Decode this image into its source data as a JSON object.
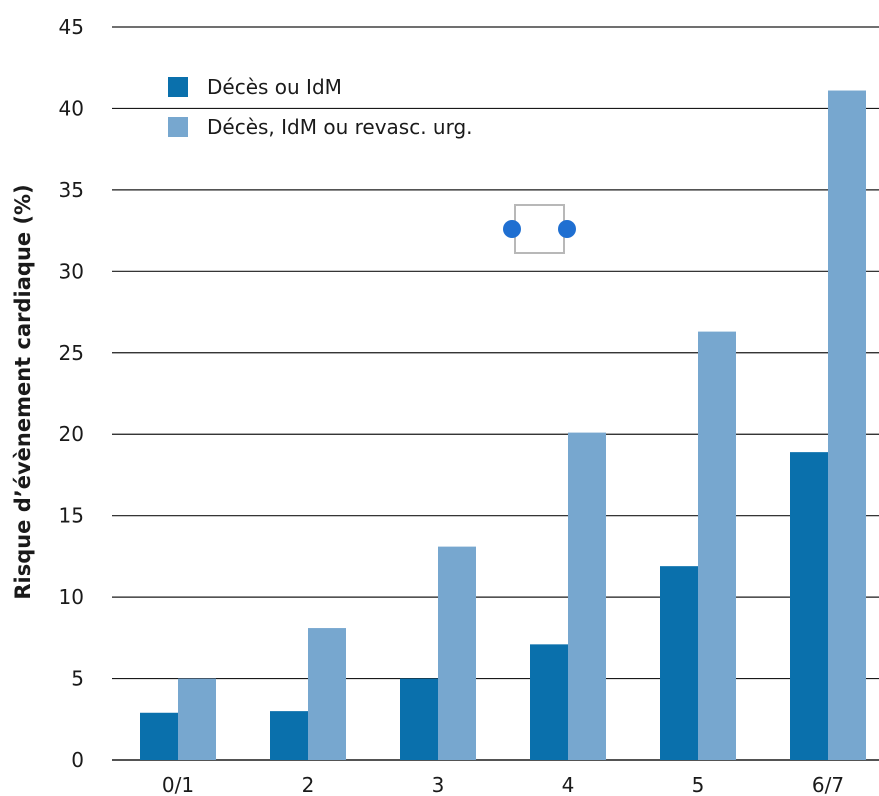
{
  "chart_data": {
    "type": "bar",
    "title": "",
    "xlabel": "",
    "ylabel": "Risque d’évènement cardiaque (%)",
    "ylim": [
      0,
      45
    ],
    "yticks": [
      0,
      5,
      10,
      15,
      20,
      25,
      30,
      35,
      40,
      45
    ],
    "grid": true,
    "legend_position": "top-left",
    "categories": [
      "0/1",
      "2",
      "3",
      "4",
      "5",
      "6/7"
    ],
    "series": [
      {
        "name": "Décès ou IdM",
        "color": "#0a70ac",
        "values": [
          2.9,
          3,
          5,
          7.1,
          11.9,
          18.9
        ]
      },
      {
        "name": "Décès, IdM ou revasc. urg.",
        "color": "#77a7cf",
        "values": [
          5,
          8.1,
          13.1,
          20.1,
          26.3,
          41.1
        ]
      }
    ]
  }
}
